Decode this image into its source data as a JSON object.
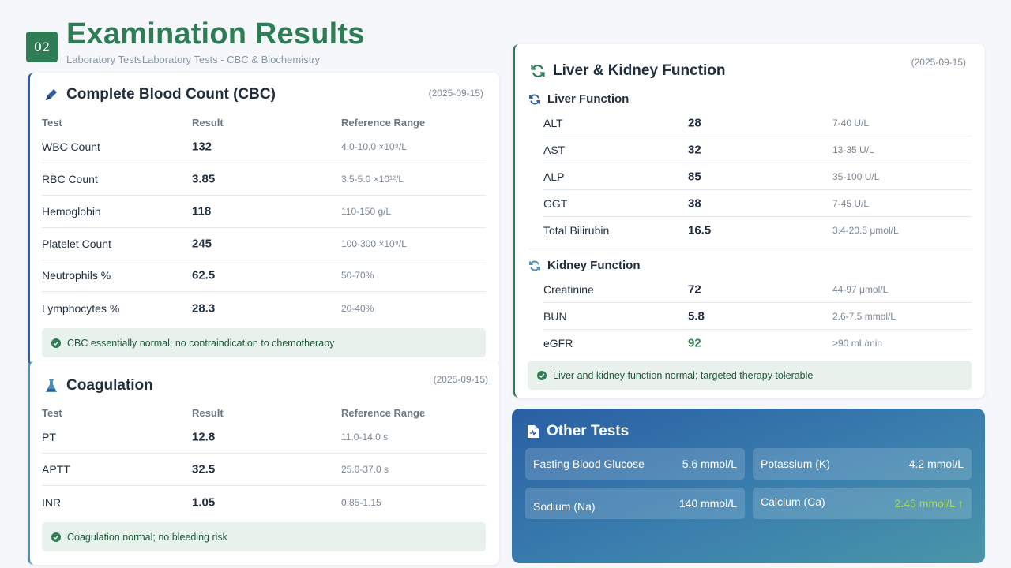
{
  "header": {
    "badge": "02",
    "title": "Examination Results",
    "subtitle": "Laboratory TestsLaboratory Tests - CBC & Biochemistry"
  },
  "cbc": {
    "title": "Complete Blood Count (CBC)",
    "date": "(2025-09-15)",
    "headers": {
      "test": "Test",
      "result": "Result",
      "ref": "Reference Range"
    },
    "rows": [
      {
        "test": "WBC Count",
        "result": "132",
        "ref": "4.0-10.0 ×10⁹/L"
      },
      {
        "test": "RBC Count",
        "result": "3.85",
        "ref": "3.5-5.0 ×10¹²/L"
      },
      {
        "test": "Hemoglobin",
        "result": "118",
        "ref": "110-150 g/L"
      },
      {
        "test": "Platelet Count",
        "result": "245",
        "ref": "100-300 ×10⁹/L"
      },
      {
        "test": "Neutrophils %",
        "result": "62.5",
        "ref": "50-70%"
      },
      {
        "test": "Lymphocytes %",
        "result": "28.3",
        "ref": "20-40%"
      }
    ],
    "note": "CBC essentially normal; no contraindication to chemotherapy"
  },
  "coag": {
    "title": "Coagulation",
    "date": "(2025-09-15)",
    "headers": {
      "test": "Test",
      "result": "Result",
      "ref": "Reference Range"
    },
    "rows": [
      {
        "test": "PT",
        "result": "12.8",
        "ref": "11.0-14.0 s"
      },
      {
        "test": "APTT",
        "result": "32.5",
        "ref": "25.0-37.0 s"
      },
      {
        "test": "INR",
        "result": "1.05",
        "ref": "0.85-1.15"
      }
    ],
    "note": "Coagulation normal; no bleeding risk"
  },
  "liver_kidney": {
    "title": "Liver & Kidney Function",
    "date": "(2025-09-15)",
    "liver_title": "Liver Function",
    "liver_rows": [
      {
        "test": "ALT",
        "result": "28",
        "ref": "7-40 U/L"
      },
      {
        "test": "AST",
        "result": "32",
        "ref": "13-35 U/L"
      },
      {
        "test": "ALP",
        "result": "85",
        "ref": "35-100 U/L"
      },
      {
        "test": "GGT",
        "result": "38",
        "ref": "7-45 U/L"
      },
      {
        "test": "Total Bilirubin",
        "result": "16.5",
        "ref": "3.4-20.5 μmol/L"
      }
    ],
    "kidney_title": "Kidney Function",
    "kidney_rows": [
      {
        "test": "Creatinine",
        "result": "72",
        "ref": "44-97 μmol/L"
      },
      {
        "test": "BUN",
        "result": "5.8",
        "ref": "2.6-7.5 mmol/L"
      },
      {
        "test": "eGFR",
        "result": "92",
        "ref": ">90 mL/min"
      }
    ],
    "note": "Liver and kidney function normal; targeted therapy tolerable"
  },
  "other": {
    "title": "Other Tests",
    "tiles": [
      {
        "name": "Fasting Blood Glucose",
        "value": "5.6 mmol/L"
      },
      {
        "name": "Potassium (K)",
        "value": "4.2 mmol/L"
      },
      {
        "name": "Sodium (Na)",
        "value": "140 mmol/L"
      },
      {
        "name": "Calcium (Ca)",
        "value": "2.45 mmol/L ↑"
      }
    ]
  },
  "colors": {
    "accent_green": "#2e7d55",
    "accent_blue": "#2b5ea0",
    "egfr_green": "#2e7d55",
    "calcium_highlight": "#a6d957"
  }
}
